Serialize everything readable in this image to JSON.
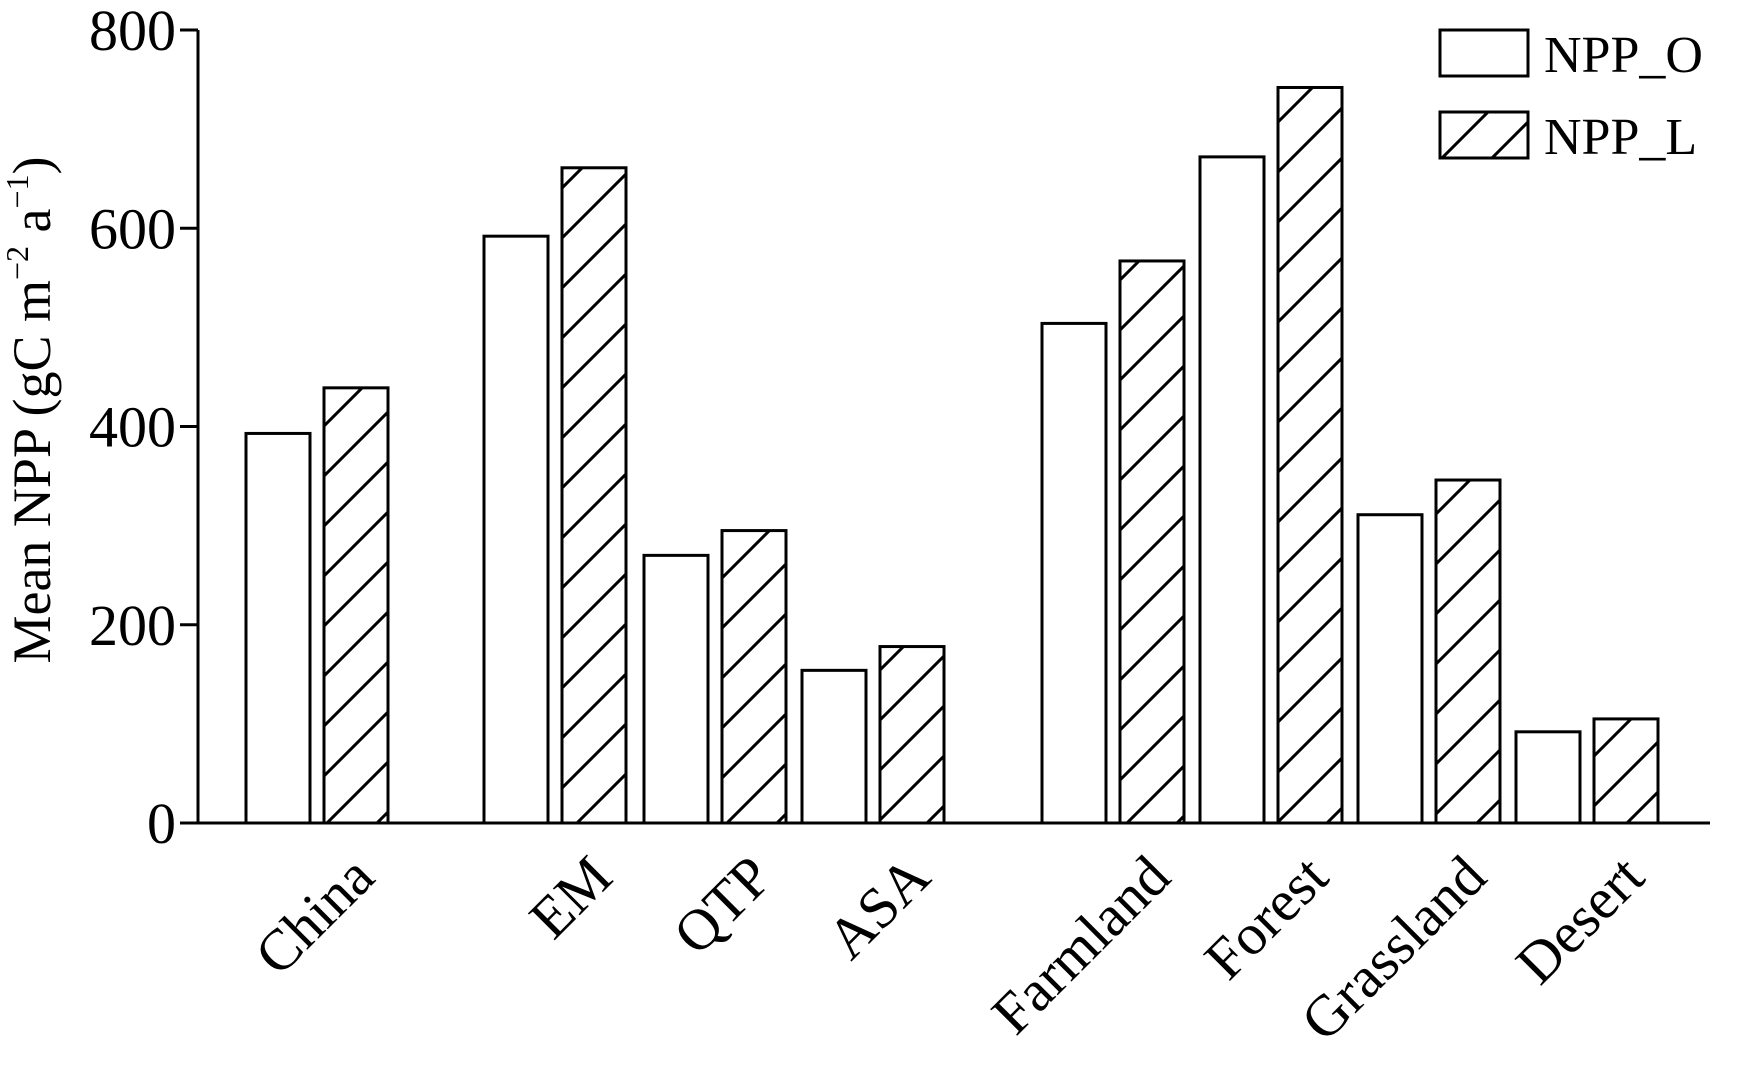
{
  "chart_data": {
    "type": "bar",
    "categories": [
      "China",
      "EM",
      "QTP",
      "ASA",
      "Farmland",
      "Forest",
      "Grassland",
      "Desert"
    ],
    "series": [
      {
        "name": "NPP_O",
        "pattern": "none",
        "values": [
          393,
          592,
          270,
          154,
          504,
          672,
          311,
          92
        ]
      },
      {
        "name": "NPP_L",
        "pattern": "hatch",
        "values": [
          439,
          661,
          295,
          178,
          567,
          742,
          346,
          105
        ]
      }
    ],
    "ylabel": {
      "text": "Mean NPP (gC m",
      "sup1": "−2",
      "mid": " a",
      "sup2": "−1",
      "end": ")"
    },
    "xlabel": "",
    "title": "",
    "ylim": [
      0,
      800
    ],
    "yticks": [
      "0",
      "200",
      "400",
      "600",
      "800"
    ],
    "grid": false,
    "legend": "top-right",
    "colors": {
      "bar_fill": "#ffffff",
      "stroke": "#000000",
      "hatch": "#000000"
    }
  }
}
